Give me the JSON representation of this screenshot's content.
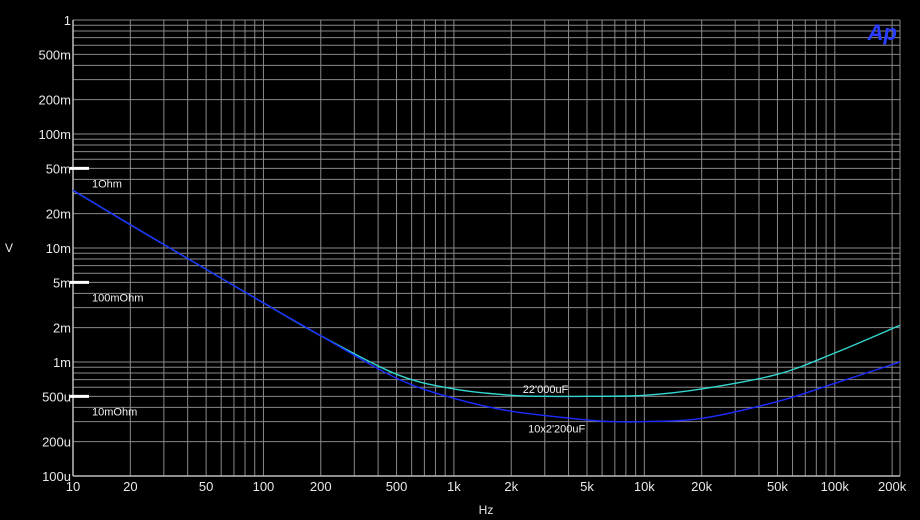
{
  "logo_text": "Ap",
  "chart_data": {
    "type": "line",
    "title": "",
    "xlabel": "Hz",
    "ylabel": "V",
    "x_scale": "log",
    "y_scale": "log",
    "xlim": [
      10,
      220000
    ],
    "ylim": [
      0.0001,
      1
    ],
    "grid": true,
    "x_tick_labels": [
      {
        "value": 10,
        "label": "10"
      },
      {
        "value": 20,
        "label": "20"
      },
      {
        "value": 50,
        "label": "50"
      },
      {
        "value": 100,
        "label": "100"
      },
      {
        "value": 200,
        "label": "200"
      },
      {
        "value": 500,
        "label": "500"
      },
      {
        "value": 1000,
        "label": "1k"
      },
      {
        "value": 2000,
        "label": "2k"
      },
      {
        "value": 5000,
        "label": "5k"
      },
      {
        "value": 10000,
        "label": "10k"
      },
      {
        "value": 20000,
        "label": "20k"
      },
      {
        "value": 50000,
        "label": "50k"
      },
      {
        "value": 100000,
        "label": "100k"
      },
      {
        "value": 200000,
        "label": "200k"
      }
    ],
    "y_tick_labels": [
      {
        "value": 1,
        "label": "1"
      },
      {
        "value": 0.5,
        "label": "500m"
      },
      {
        "value": 0.2,
        "label": "200m"
      },
      {
        "value": 0.1,
        "label": "100m"
      },
      {
        "value": 0.05,
        "label": "50m"
      },
      {
        "value": 0.02,
        "label": "20m"
      },
      {
        "value": 0.01,
        "label": "10m"
      },
      {
        "value": 0.005,
        "label": "5m"
      },
      {
        "value": 0.002,
        "label": "2m"
      },
      {
        "value": 0.001,
        "label": "1m"
      },
      {
        "value": 0.0005,
        "label": "500u"
      },
      {
        "value": 0.0002,
        "label": "200u"
      },
      {
        "value": 0.0001,
        "label": "100u"
      }
    ],
    "reference_markers": [
      {
        "value": 0.05,
        "label": "1Ohm"
      },
      {
        "value": 0.005,
        "label": "100mOhm"
      },
      {
        "value": 0.0005,
        "label": "10mOhm"
      }
    ],
    "series": [
      {
        "name": "22'000uF",
        "color": "#33d6d0",
        "x": [
          10,
          20,
          50,
          100,
          200,
          500,
          1000,
          2000,
          3000,
          5000,
          10000,
          20000,
          50000,
          100000,
          220000
        ],
        "y": [
          0.032,
          0.016,
          0.0065,
          0.0033,
          0.0017,
          0.00078,
          0.00058,
          0.00051,
          0.0005,
          0.0005,
          0.00051,
          0.00058,
          0.00078,
          0.0012,
          0.0021
        ]
      },
      {
        "name": "10x2'200uF",
        "color": "#1c2cff",
        "x": [
          10,
          20,
          50,
          100,
          200,
          500,
          1000,
          2000,
          5000,
          7000,
          10000,
          20000,
          50000,
          100000,
          220000
        ],
        "y": [
          0.032,
          0.016,
          0.0065,
          0.0033,
          0.0017,
          0.00072,
          0.00048,
          0.00037,
          0.00031,
          0.0003,
          0.0003,
          0.00032,
          0.00045,
          0.00065,
          0.001
        ]
      }
    ],
    "annotations": [
      {
        "text": "22'000uF",
        "x": 3000,
        "y": 0.00058
      },
      {
        "text": "10x2'200uF",
        "x": 3200,
        "y": 0.00026
      }
    ]
  }
}
